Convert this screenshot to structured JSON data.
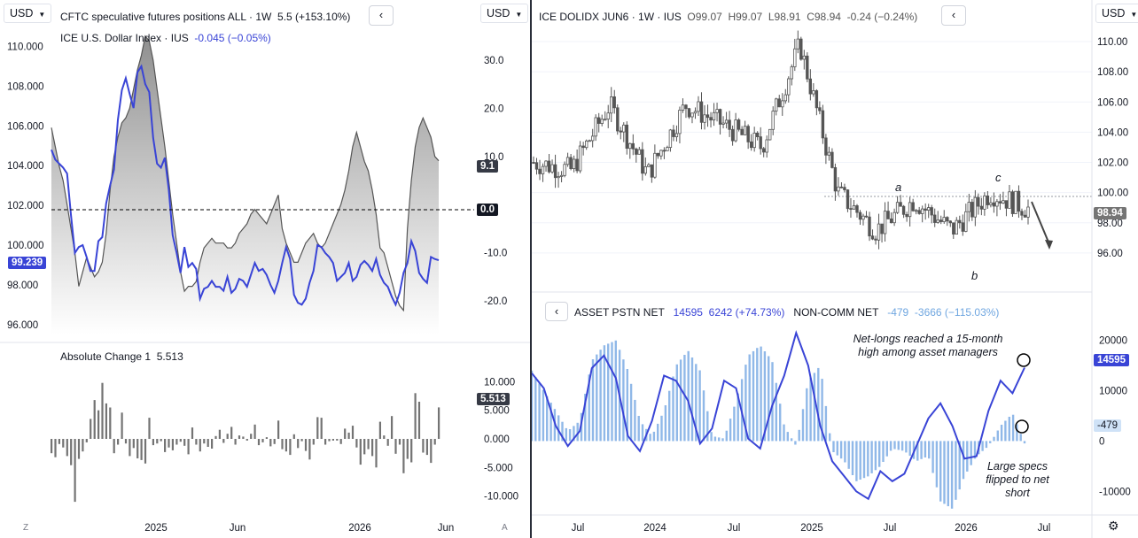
{
  "left": {
    "currency": "USD",
    "legend1": {
      "name": "CFTC speculative futures positions ALL",
      "interval": "1W",
      "value": "5.5",
      "change": "(+153.10%)"
    },
    "legend2": {
      "name": "ICE U.S. Dollar Index",
      "exchange": "IUS",
      "change": "-0.045 (−0.05%)"
    },
    "legend3": {
      "name": "Absolute Change 1",
      "value": "5.513"
    },
    "back_button": "‹",
    "dxy_ticks": [
      "110.000",
      "108.000",
      "106.000",
      "104.000",
      "102.000",
      "100.000",
      "98.000",
      "96.000"
    ],
    "cftc_ticks": [
      "30.0",
      "20.0",
      "10.0",
      "0.0",
      "-10.0",
      "-20.0"
    ],
    "change_ticks": [
      "10.000",
      "5.000",
      "0.000",
      "-5.000",
      "-10.000"
    ],
    "x_ticks": [
      "2025",
      "Jun",
      "2026",
      "Jun"
    ],
    "dxy_tag": "99.239",
    "cftc_tag": "9.1",
    "zero_tag": "0.0",
    "change_tag": "5.513",
    "corner_left": "Z",
    "corner_right": "A",
    "colors": {
      "dxy": "#3944d6",
      "cftc": "#555555",
      "bars": "#737373"
    }
  },
  "right": {
    "currency": "USD",
    "legend": {
      "symbol": "ICE DOLIDX JUN6",
      "interval": "1W",
      "exchange": "IUS",
      "o": "O99.07",
      "h": "H99.07",
      "l": "L98.91",
      "c": "C98.94",
      "change": "-0.24 (−0.24%)"
    },
    "back_button": "‹",
    "price_ticks": [
      "110.00",
      "108.00",
      "106.00",
      "104.00",
      "102.00",
      "100.00",
      "98.00",
      "96.00"
    ],
    "price_tag": "98.94",
    "wave_labels": [
      "a",
      "b",
      "c"
    ],
    "lower_legend": {
      "name1": "ASSET PSTN NET",
      "val1": "14595",
      "val2": "6242 (+74.73%)",
      "name2": "NON-COMM NET",
      "val3": "-479",
      "val4": "-3666 (−115.03%)"
    },
    "lower_ticks": [
      "20000",
      "10000",
      "0",
      "-10000"
    ],
    "asset_tag": "14595",
    "noncomm_tag": "-479",
    "annotation1": "Net-longs reached a 15-month high among asset managers",
    "annotation2": "Large specs flipped to net short",
    "x_ticks": [
      "Jul",
      "2024",
      "Jul",
      "2025",
      "Jul",
      "2026",
      "Jul"
    ],
    "colors": {
      "asset": "#3944d6",
      "noncomm": "#90b8e8",
      "candles": "#555555"
    }
  },
  "chart_data": [
    {
      "type": "line",
      "title": "CFTC speculative futures positions ALL vs ICE U.S. Dollar Index",
      "x": [
        0,
        1,
        2,
        3,
        4,
        5,
        6,
        7,
        8,
        9,
        10,
        11,
        12,
        13,
        14,
        15,
        16,
        17,
        18,
        19,
        20,
        21,
        22,
        23,
        24,
        25,
        26,
        27,
        28,
        29,
        30,
        31,
        32,
        33,
        34,
        35,
        36,
        37,
        38,
        39,
        40,
        41,
        42,
        43,
        44,
        45,
        46,
        47,
        48,
        49,
        50,
        51,
        52,
        53,
        54,
        55,
        56,
        57,
        58,
        59,
        60,
        61,
        62,
        63,
        64,
        65,
        66,
        67,
        68,
        69,
        70,
        71,
        72,
        73,
        74,
        75,
        76,
        77,
        78,
        79,
        80,
        81,
        82,
        83,
        84,
        85,
        86,
        87,
        88,
        89,
        90,
        91,
        92,
        93,
        94,
        95,
        96,
        97,
        98,
        99
      ],
      "series": [
        {
          "name": "CFTC speculative futures positions ALL",
          "axis": "right",
          "values": [
            16,
            12,
            8,
            5,
            0,
            -5,
            -10,
            -17,
            -14,
            -11,
            -13,
            -15,
            -14,
            -12,
            -6,
            3,
            10,
            14,
            17,
            18,
            20,
            24,
            28,
            31,
            35,
            34,
            30,
            24,
            18,
            12,
            5,
            -2,
            -8,
            -14,
            -18,
            -17,
            -17,
            -16,
            -12,
            -9,
            -8,
            -7,
            -8,
            -8,
            -8,
            -9,
            -9,
            -8,
            -6,
            -5,
            -4,
            -2,
            -1,
            -2,
            -3,
            -4,
            -2,
            0,
            2,
            -5,
            -8,
            -10,
            -12,
            -12,
            -10,
            -8,
            -7,
            -6,
            -8,
            -9,
            -8,
            -6,
            -4,
            -2,
            0,
            3,
            7,
            12,
            15,
            12,
            9,
            7,
            3,
            -2,
            -9,
            -10,
            -13,
            -16,
            -19,
            -21,
            -22,
            -5,
            5,
            12,
            16,
            18,
            16,
            14,
            10,
            9.1
          ]
        },
        {
          "name": "ICE U.S. Dollar Index",
          "axis": "left",
          "values": [
            104.8,
            104.3,
            104.1,
            103.9,
            103.6,
            101.5,
            99.6,
            99.9,
            100.0,
            99.4,
            98.7,
            98.7,
            100.2,
            100.4,
            102.1,
            103.0,
            103.8,
            106.3,
            107.8,
            108.4,
            107.6,
            106.9,
            108.7,
            109.0,
            108.1,
            107.7,
            105.4,
            104.1,
            103.9,
            104.4,
            102.8,
            100.5,
            99.6,
            98.6,
            99.9,
            98.9,
            99.1,
            98.8,
            97.3,
            97.8,
            97.9,
            98.2,
            97.9,
            97.9,
            97.7,
            98.4,
            97.6,
            97.8,
            98.3,
            98.2,
            97.9,
            98.5,
            99.1,
            98.7,
            98.8,
            98.5,
            98.0,
            97.6,
            98.2,
            99.1,
            99.9,
            99.3,
            97.5,
            97.1,
            97.0,
            97.3,
            98.1,
            98.7,
            100.0,
            99.9,
            99.6,
            99.4,
            99.1,
            98.2,
            98.4,
            98.6,
            99.1,
            98.2,
            98.4,
            99.0,
            99.2,
            99.0,
            98.7,
            99.3,
            98.5,
            98.1,
            97.9,
            97.4,
            97.0,
            97.6,
            98.6,
            99.1,
            100.2,
            99.7,
            98.6,
            98.3,
            98.1,
            99.4,
            99.3,
            99.239
          ]
        }
      ],
      "ylim_left": [
        95.5,
        111.0
      ],
      "ylim_right": [
        -27,
        37
      ],
      "legend_position": "top-left"
    },
    {
      "type": "bar",
      "title": "Absolute Change 1",
      "values": [
        -2.5,
        -3.2,
        -0.9,
        -1.5,
        -3.0,
        -4.6,
        -11.0,
        -3.5,
        -2.2,
        -0.6,
        3.5,
        6.8,
        5.0,
        9.8,
        6.2,
        5.5,
        -2.5,
        -1.0,
        4.6,
        -0.8,
        -3.0,
        -1.6,
        -3.4,
        -3.7,
        -4.3,
        3.7,
        -1.1,
        -0.8,
        -0.4,
        -2.3,
        -1.5,
        -2.0,
        -1.0,
        -0.5,
        -1.2,
        -2.7,
        2.0,
        -1.0,
        -2.2,
        -0.8,
        -1.4,
        -1.7,
        0.5,
        1.6,
        -0.7,
        0.9,
        2.1,
        -1.0,
        0.6,
        0.4,
        -0.3,
        0.9,
        2.5,
        -1.1,
        -0.6,
        0.3,
        -1.3,
        -0.9,
        3.2,
        -1.8,
        -2.2,
        -2.8,
        0.8,
        -1.6,
        -0.4,
        -2.1,
        -3.6,
        -1.0,
        3.8,
        3.7,
        -1.0,
        -0.4,
        -0.3,
        -0.3,
        -0.9,
        1.8,
        1.1,
        2.3,
        -1.5,
        -4.5,
        -2.7,
        -1.8,
        -3.0,
        -5.0,
        3.0,
        0.6,
        -1.2,
        4.0,
        -2.6,
        -1.0,
        -6.0,
        -3.5,
        -4.1,
        8.0,
        6.5,
        -2.4,
        -2.8,
        -4.2,
        -1.0,
        5.513
      ],
      "ylim": [
        -13,
        13
      ]
    },
    {
      "type": "line",
      "title": "ICE DOLIDX JUN6",
      "x": [
        "2023-05",
        "2023-07",
        "2023-10",
        "2024-01",
        "2024-04",
        "2024-07",
        "2024-10",
        "2025-01",
        "2025-04",
        "2025-07",
        "2025-10",
        "2026-01",
        "2026-04",
        "2026-07"
      ],
      "series": [
        {
          "name": "ICE DOLIDX JUN6",
          "values": [
            102.0,
            101.5,
            105.8,
            101.2,
            105.8,
            104.5,
            103.0,
            109.8,
            100.0,
            97.5,
            99.5,
            97.5,
            100.0,
            98.94
          ]
        }
      ],
      "ylim": [
        94.0,
        111.0
      ],
      "annotations": [
        "a",
        "b",
        "c"
      ]
    },
    {
      "type": "bar",
      "title": "ASSET PSTN NET / NON-COMM NET",
      "series": [
        {
          "name": "ASSET PSTN NET",
          "kind": "line",
          "values": [
            13500,
            10500,
            3000,
            -1000,
            2000,
            14500,
            17000,
            12500,
            1000,
            -2000,
            4000,
            13000,
            12000,
            8000,
            -500,
            2500,
            12000,
            10500,
            500,
            -1500,
            7000,
            13000,
            21500,
            15000,
            3000,
            -4000,
            -7000,
            -10000,
            -11500,
            -6000,
            -8000,
            -6500,
            -1000,
            4500,
            7500,
            3000,
            -3500,
            -3000,
            6000,
            12000,
            9500,
            14595
          ]
        },
        {
          "name": "NON-COMM NET",
          "kind": "bars",
          "values": [
            14000,
            10000,
            6000,
            2000,
            4000,
            16000,
            19000,
            20000,
            14000,
            4000,
            1000,
            6000,
            15000,
            18000,
            14000,
            1000,
            500,
            8000,
            17000,
            19000,
            16000,
            3000,
            -1000,
            12000,
            15000,
            -2000,
            -4000,
            -8000,
            -7000,
            -5000,
            -1500,
            -2000,
            -4000,
            -3000,
            -12000,
            -13500,
            -7000,
            -3000,
            -1000,
            3000,
            5500,
            -479
          ]
        }
      ],
      "ylim": [
        -14000,
        24000
      ]
    }
  ]
}
